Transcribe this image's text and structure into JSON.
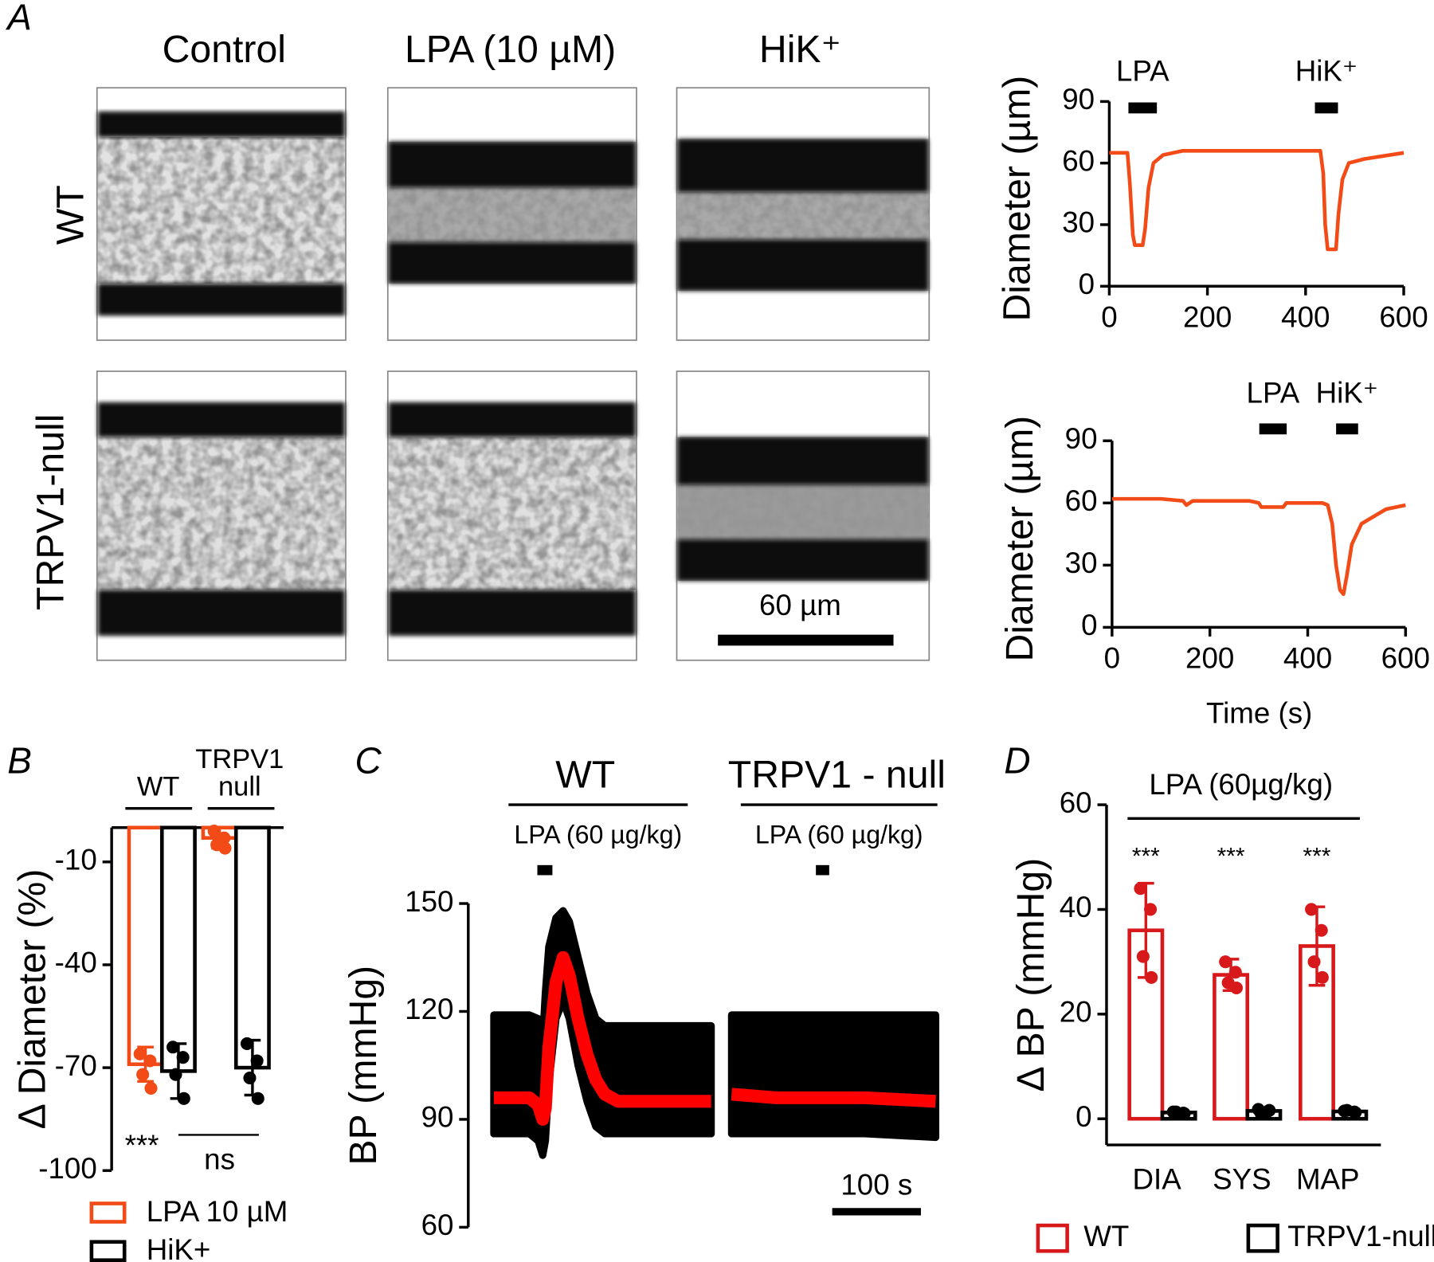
{
  "panel_a": {
    "letter": "A",
    "columns": [
      "Control",
      "LPA (10 µM)",
      "HiK⁺"
    ],
    "rows": [
      "WT",
      "TRPV1-null"
    ],
    "scale_bar": "60 µm"
  },
  "chart_data": [
    {
      "type": "line",
      "y_label": "Diameter (µm)",
      "x": [
        0,
        37,
        42,
        48,
        52,
        68,
        73,
        80,
        90,
        110,
        150,
        300,
        430,
        436,
        440,
        445,
        462,
        467,
        475,
        488,
        520,
        600
      ],
      "series": [
        {
          "color": "#f24b17",
          "values": [
            65,
            65,
            50,
            25,
            20,
            20,
            28,
            48,
            60,
            64,
            66,
            66,
            66,
            55,
            30,
            18,
            18,
            35,
            52,
            60,
            62,
            65
          ]
        }
      ],
      "xlim": [
        0,
        600
      ],
      "xticks": [
        0,
        200,
        400,
        600
      ],
      "ylim": [
        0,
        90
      ],
      "yticks": [
        0,
        30,
        60,
        90
      ],
      "annotations": [
        {
          "text": "LPA",
          "start": 39,
          "end": 97
        },
        {
          "text": "HiK⁺",
          "start": 419,
          "end": 466
        }
      ]
    },
    {
      "type": "line",
      "y_label": "Diameter (µm)",
      "x_label": "Time (s)",
      "x": [
        0,
        100,
        145,
        152,
        165,
        280,
        300,
        305,
        350,
        356,
        430,
        441,
        450,
        458,
        466,
        473,
        480,
        490,
        510,
        560,
        600
      ],
      "series": [
        {
          "color": "#f24b17",
          "values": [
            62,
            62,
            61,
            59,
            61,
            61,
            60,
            58,
            58,
            60,
            60,
            59,
            50,
            30,
            18,
            16,
            25,
            40,
            50,
            57,
            59
          ]
        }
      ],
      "xlim": [
        0,
        600
      ],
      "xticks": [
        0,
        200,
        400,
        600
      ],
      "ylim": [
        0,
        90
      ],
      "yticks": [
        0,
        30,
        60,
        90
      ],
      "annotations": [
        {
          "text": "LPA",
          "start": 301,
          "end": 357
        },
        {
          "text": "HiK⁺",
          "start": 458,
          "end": 503
        }
      ]
    },
    {
      "type": "bar",
      "panel": "B",
      "y_label": "Δ Diameter (%)",
      "categories": [
        "WT",
        "TRPV1 null"
      ],
      "series": [
        {
          "name": "LPA 10 µM",
          "color": "#f24b17",
          "values": [
            -69,
            -3
          ],
          "errors": [
            5,
            3
          ],
          "points": [
            [
              -66,
              -68,
              -72,
              -76
            ],
            [
              -1,
              -3,
              -5,
              -6
            ]
          ]
        },
        {
          "name": "HiK+",
          "color": "#000000",
          "values": [
            -71,
            -70
          ],
          "errors": [
            8,
            8
          ],
          "points": [
            [
              -64,
              -67,
              -72,
              -79
            ],
            [
              -63,
              -68,
              -73,
              -79
            ]
          ]
        }
      ],
      "ylim": [
        -100,
        0
      ],
      "yticks": [
        -10,
        -40,
        -70,
        -100
      ],
      "annotations": [
        "***",
        "ns"
      ]
    },
    {
      "type": "trace",
      "panel": "C",
      "y_label": "BP (mmHg)",
      "ylim": [
        60,
        150
      ],
      "yticks": [
        60,
        90,
        120,
        150
      ],
      "band_color": "#000000",
      "mean_color": "#ff0000",
      "groups": [
        {
          "title": "WT",
          "treatment": "LPA (60 µg/kg)",
          "injection": [
            49,
            66
          ],
          "x": [
            0,
            40,
            50,
            55,
            58,
            62,
            70,
            78,
            85,
            95,
            105,
            115,
            125,
            140,
            160,
            200,
            245
          ],
          "mean": [
            96,
            96,
            94,
            90,
            93,
            110,
            128,
            135,
            130,
            118,
            108,
            101,
            97,
            95,
            95,
            95,
            95
          ],
          "upper": [
            119,
            119,
            118,
            112,
            125,
            138,
            146,
            148,
            145,
            135,
            125,
            118,
            116,
            116,
            116,
            116,
            116
          ],
          "lower": [
            86,
            86,
            84,
            80,
            84,
            100,
            118,
            123,
            118,
            105,
            95,
            88,
            86,
            86,
            86,
            86,
            86
          ]
        },
        {
          "title": "TRPV1 - null",
          "treatment": "LPA (60 µg/kg)",
          "injection": [
            95,
            110
          ],
          "x": [
            0,
            50,
            100,
            150,
            230
          ],
          "mean": [
            97,
            96,
            96,
            96,
            95
          ],
          "upper": [
            119,
            119,
            119,
            119,
            119
          ],
          "lower": [
            86,
            86,
            86,
            86,
            85
          ]
        }
      ],
      "scale_bar": {
        "value": 100,
        "label": "100 s"
      }
    },
    {
      "type": "bar",
      "panel": "D",
      "title": "LPA (60µg/kg)",
      "y_label": "Δ BP (mmHg)",
      "categories": [
        "DIA",
        "SYS",
        "MAP"
      ],
      "series": [
        {
          "name": "WT",
          "color": "#d7191c",
          "values": [
            36,
            27.5,
            33
          ],
          "errors": [
            9,
            3,
            7.5
          ],
          "points": [
            [
              44,
              40,
              31,
              27
            ],
            [
              30,
              28,
              26,
              25
            ],
            [
              40,
              36,
              30,
              27
            ]
          ]
        },
        {
          "name": "TRPV1-null",
          "color": "#000000",
          "values": [
            1.2,
            1.5,
            1.4
          ],
          "errors": [
            0.3,
            0.6,
            0.4
          ],
          "points": [
            [
              1.3,
              1.1,
              1.3,
              1.0
            ],
            [
              1.8,
              1.5,
              1.0,
              1.6
            ],
            [
              1.5,
              1.3,
              1.6,
              1.2
            ]
          ]
        }
      ],
      "ylim": [
        -5,
        60
      ],
      "yticks": [
        0,
        20,
        40,
        60
      ],
      "annotations": [
        "***",
        "***",
        "***"
      ]
    }
  ]
}
